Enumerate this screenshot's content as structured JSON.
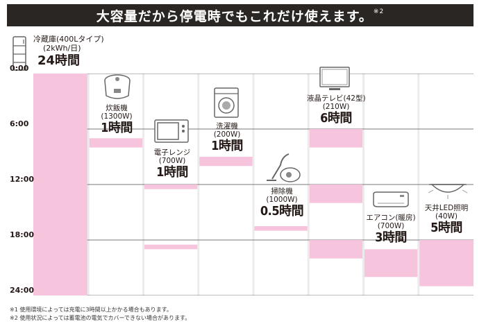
{
  "header": {
    "title": "大容量だから停電時でもこれだけ使えます。",
    "title_note": "※2"
  },
  "chart_data": {
    "type": "bar",
    "orientation": "vertical-time-ranges",
    "y_axis": {
      "ticks": [
        "0:00",
        "6:00",
        "12:00",
        "18:00",
        "24:00"
      ],
      "range_hours": [
        0,
        24
      ]
    },
    "bar_color": "#f7c4dd",
    "categories": [
      {
        "name": "冷蔵庫(400Lタイプ)",
        "power": "(2kWh/日)",
        "hours_label": "24時間",
        "start": 0,
        "end": 24,
        "icon": "refrigerator-icon"
      },
      {
        "name": "炊飯機",
        "power": "(1300W)",
        "hours_label": "1時間",
        "start": 7,
        "end": 8,
        "icon": "rice-cooker-icon"
      },
      {
        "name": "電子レンジ",
        "power": "(700W)",
        "hours_label": "1時間",
        "start": 12,
        "end": 12.5,
        "extra_segments": [
          [
            18.5,
            19
          ]
        ],
        "icon": "microwave-icon"
      },
      {
        "name": "洗濯機",
        "power": "(200W)",
        "hours_label": "1時間",
        "start": 9,
        "end": 10,
        "icon": "washing-machine-icon"
      },
      {
        "name": "掃除機",
        "power": "(1000W)",
        "hours_label": "0.5時間",
        "start": 16.5,
        "end": 17,
        "icon": "vacuum-cleaner-icon"
      },
      {
        "name": "液晶テレビ(42型)",
        "power": "(210W)",
        "hours_label": "6時間",
        "start": 6,
        "end": 8,
        "extra_segments": [
          [
            12,
            14
          ],
          [
            18,
            20
          ]
        ],
        "icon": "tv-icon"
      },
      {
        "name": "エアコン(暖房)",
        "power": "(700W)",
        "hours_label": "3時間",
        "start": 19,
        "end": 22,
        "icon": "air-conditioner-icon"
      },
      {
        "name": "天井LED照明",
        "power": "(40W)",
        "hours_label": "5時間",
        "start": 18,
        "end": 23,
        "icon": "ceiling-light-icon"
      }
    ]
  },
  "footnotes": [
    "※1 使用環境によっては充電に3時間以上かかる場合もあります。",
    "※2 使用状況によっては蓄電池の電気でカバーできない場合があります。"
  ]
}
